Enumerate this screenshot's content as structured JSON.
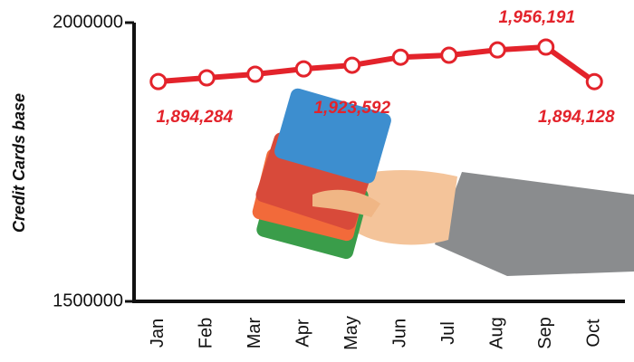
{
  "chart_data": {
    "type": "line",
    "y_label": "Credit Cards base",
    "categories": [
      "Jan",
      "Feb",
      "Mar",
      "Apr",
      "May",
      "Jun",
      "Jul",
      "Aug",
      "Sep",
      "Oct"
    ],
    "values": [
      1894284,
      1901000,
      1907500,
      1917000,
      1923592,
      1938000,
      1941500,
      1951000,
      1956191,
      1894128
    ],
    "value_labels": [
      "1,894,284",
      null,
      null,
      null,
      "1,923,592",
      null,
      null,
      null,
      "1,956,191",
      "1,894,128"
    ],
    "color": "#e3232b",
    "ylim": [
      1500000,
      2000000
    ],
    "yticks": [
      1500000,
      2000000
    ],
    "grid": false
  }
}
